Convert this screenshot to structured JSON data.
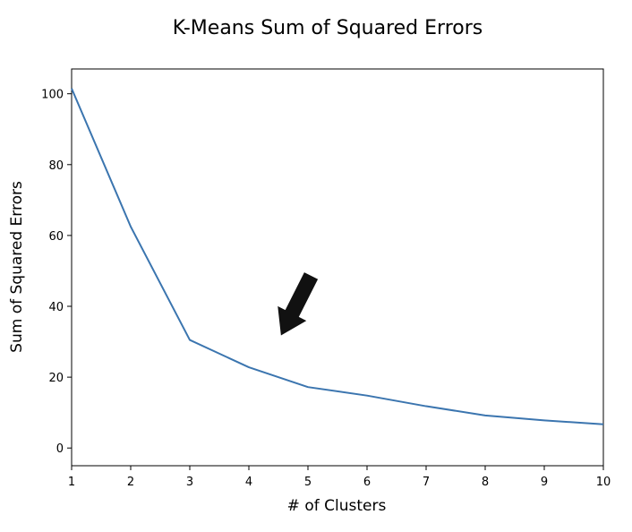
{
  "chart_data": {
    "type": "line",
    "title": "K-Means Sum of Squared Errors",
    "xlabel": "# of Clusters",
    "ylabel": "Sum of Squared Errors",
    "x": [
      1,
      2,
      3,
      4,
      5,
      6,
      7,
      8,
      9,
      10
    ],
    "series": [
      {
        "values": [
          101.5,
          62.5,
          30.5,
          22.8,
          17.2,
          14.8,
          11.8,
          9.2,
          7.8,
          6.7
        ]
      }
    ],
    "xlim": [
      1,
      10
    ],
    "ylim": [
      -5,
      107
    ],
    "xticks": [
      1,
      2,
      3,
      4,
      5,
      6,
      7,
      8,
      9,
      10
    ],
    "yticks": [
      0,
      20,
      40,
      60,
      80,
      100
    ],
    "grid": false,
    "line_color": "#3b75af",
    "annotation": {
      "type": "arrow",
      "color": "#111111",
      "from": [
        5.05,
        48.5
      ],
      "to": [
        4.55,
        32
      ]
    }
  }
}
